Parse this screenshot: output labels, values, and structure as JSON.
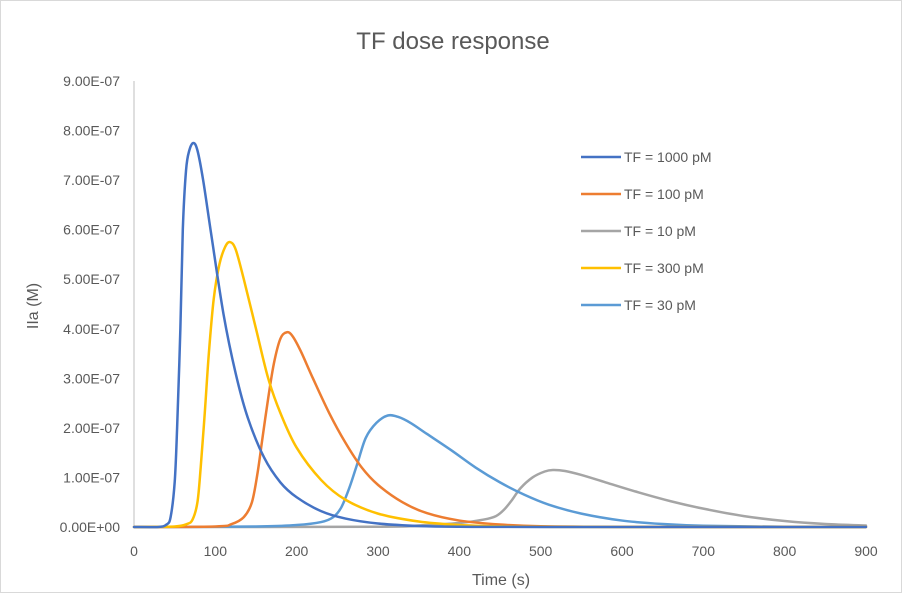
{
  "chart_data": {
    "type": "line",
    "title": "TF dose response",
    "xlabel": "Time (s)",
    "ylabel": "IIa (M)",
    "xlim": [
      0,
      900
    ],
    "ylim": [
      0,
      9e-07
    ],
    "xticks": [
      "0",
      "100",
      "200",
      "300",
      "400",
      "500",
      "600",
      "700",
      "800",
      "900"
    ],
    "yticks": [
      "0.00E+00",
      "1.00E-07",
      "2.00E-07",
      "3.00E-07",
      "4.00E-07",
      "5.00E-07",
      "6.00E-07",
      "7.00E-07",
      "8.00E-07",
      "9.00E-07"
    ],
    "grid": false,
    "legend_position": "right",
    "series": [
      {
        "name": "TF = 1000 pM",
        "color": "#4472C4",
        "points": [
          [
            0,
            0
          ],
          [
            30,
            1e-10
          ],
          [
            40,
            5e-09
          ],
          [
            45,
            2e-08
          ],
          [
            50,
            9e-08
          ],
          [
            53,
            2e-07
          ],
          [
            57,
            4e-07
          ],
          [
            60,
            6e-07
          ],
          [
            64,
            7.2e-07
          ],
          [
            68,
            7.6e-07
          ],
          [
            73,
            7.75e-07
          ],
          [
            78,
            7.6e-07
          ],
          [
            85,
            7e-07
          ],
          [
            95,
            5.9e-07
          ],
          [
            110,
            4.3e-07
          ],
          [
            125,
            3.1e-07
          ],
          [
            140,
            2.2e-07
          ],
          [
            160,
            1.4e-07
          ],
          [
            180,
            9e-08
          ],
          [
            200,
            6e-08
          ],
          [
            230,
            3.2e-08
          ],
          [
            260,
            1.7e-08
          ],
          [
            300,
            7e-09
          ],
          [
            350,
            2e-09
          ],
          [
            400,
            5e-10
          ],
          [
            500,
            0
          ],
          [
            900,
            0
          ]
        ]
      },
      {
        "name": "TF = 100 pM",
        "color": "#ED7D31",
        "points": [
          [
            0,
            0
          ],
          [
            100,
            1e-09
          ],
          [
            120,
            6e-09
          ],
          [
            135,
            2e-08
          ],
          [
            145,
            5e-08
          ],
          [
            152,
            1.1e-07
          ],
          [
            158,
            1.8e-07
          ],
          [
            165,
            2.6e-07
          ],
          [
            172,
            3.3e-07
          ],
          [
            180,
            3.8e-07
          ],
          [
            188,
            3.93e-07
          ],
          [
            195,
            3.85e-07
          ],
          [
            205,
            3.55e-07
          ],
          [
            220,
            3e-07
          ],
          [
            240,
            2.3e-07
          ],
          [
            260,
            1.7e-07
          ],
          [
            280,
            1.2e-07
          ],
          [
            300,
            8.5e-08
          ],
          [
            330,
            5e-08
          ],
          [
            360,
            2.8e-08
          ],
          [
            400,
            1.3e-08
          ],
          [
            450,
            5e-09
          ],
          [
            500,
            1.5e-09
          ],
          [
            600,
            3e-10
          ],
          [
            900,
            0
          ]
        ]
      },
      {
        "name": "TF = 10 pM",
        "color": "#A5A5A5",
        "points": [
          [
            0,
            0
          ],
          [
            300,
            5e-10
          ],
          [
            350,
            3e-09
          ],
          [
            400,
            8e-09
          ],
          [
            430,
            1.5e-08
          ],
          [
            445,
            2.2e-08
          ],
          [
            455,
            3.5e-08
          ],
          [
            465,
            5.5e-08
          ],
          [
            475,
            7.8e-08
          ],
          [
            490,
            1e-07
          ],
          [
            505,
            1.12e-07
          ],
          [
            515,
            1.15e-07
          ],
          [
            530,
            1.13e-07
          ],
          [
            550,
            1.05e-07
          ],
          [
            580,
            9e-08
          ],
          [
            620,
            7e-08
          ],
          [
            660,
            5.2e-08
          ],
          [
            700,
            3.7e-08
          ],
          [
            750,
            2.2e-08
          ],
          [
            800,
            1.2e-08
          ],
          [
            850,
            6e-09
          ],
          [
            900,
            3e-09
          ]
        ]
      },
      {
        "name": "TF = 300 pM",
        "color": "#FFC000",
        "points": [
          [
            0,
            0
          ],
          [
            50,
            1e-09
          ],
          [
            65,
            6e-09
          ],
          [
            72,
            1.5e-08
          ],
          [
            78,
            5e-08
          ],
          [
            82,
            1.2e-07
          ],
          [
            87,
            2.3e-07
          ],
          [
            92,
            3.5e-07
          ],
          [
            98,
            4.6e-07
          ],
          [
            105,
            5.3e-07
          ],
          [
            112,
            5.65e-07
          ],
          [
            118,
            5.75e-07
          ],
          [
            125,
            5.6e-07
          ],
          [
            135,
            5e-07
          ],
          [
            150,
            4e-07
          ],
          [
            165,
            3e-07
          ],
          [
            180,
            2.3e-07
          ],
          [
            200,
            1.6e-07
          ],
          [
            230,
            9.5e-08
          ],
          [
            260,
            5.5e-08
          ],
          [
            300,
            2.7e-08
          ],
          [
            350,
            1.1e-08
          ],
          [
            400,
            4e-09
          ],
          [
            450,
            1.2e-09
          ],
          [
            500,
            4e-10
          ],
          [
            600,
            0
          ],
          [
            900,
            0
          ]
        ]
      },
      {
        "name": "TF = 30 pM",
        "color": "#5B9BD5",
        "points": [
          [
            0,
            0
          ],
          [
            150,
            1e-09
          ],
          [
            200,
            4e-09
          ],
          [
            230,
            1e-08
          ],
          [
            245,
            2e-08
          ],
          [
            255,
            4e-08
          ],
          [
            265,
            8e-08
          ],
          [
            275,
            1.3e-07
          ],
          [
            285,
            1.8e-07
          ],
          [
            298,
            2.1e-07
          ],
          [
            312,
            2.25e-07
          ],
          [
            325,
            2.22e-07
          ],
          [
            340,
            2.1e-07
          ],
          [
            360,
            1.88e-07
          ],
          [
            390,
            1.55e-07
          ],
          [
            420,
            1.2e-07
          ],
          [
            450,
            9e-08
          ],
          [
            480,
            6.5e-08
          ],
          [
            510,
            4.5e-08
          ],
          [
            550,
            2.7e-08
          ],
          [
            600,
            1.3e-08
          ],
          [
            650,
            6e-09
          ],
          [
            700,
            2.5e-09
          ],
          [
            800,
            5e-10
          ],
          [
            900,
            1e-10
          ]
        ]
      }
    ]
  }
}
